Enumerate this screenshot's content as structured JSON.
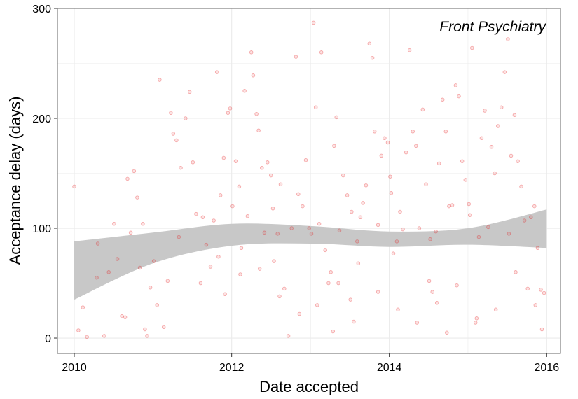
{
  "chart_data": {
    "type": "scatter",
    "annotation": "Front Psychiatry",
    "xlabel": "Date accepted",
    "ylabel": "Acceptance delay (days)",
    "xlim": [
      "2009-10-15",
      "2016-03-05"
    ],
    "ylim": [
      -14,
      300
    ],
    "x_ticks": [
      "2010",
      "2012",
      "2014",
      "2016"
    ],
    "x_tick_values": [
      "2010-01-01",
      "2012-01-01",
      "2014-01-01",
      "2016-01-01"
    ],
    "y_ticks": [
      "0",
      "100",
      "200",
      "300"
    ],
    "y_tick_values": [
      0,
      100,
      200,
      300
    ],
    "grid": true,
    "colors": {
      "points": "#e41a1c",
      "band": "#c8c8c8",
      "grid": "#ebebeb",
      "border": "#7f7f7f"
    },
    "points": [
      [
        "2010-01-01",
        138
      ],
      [
        "2010-01-20",
        7
      ],
      [
        "2010-02-10",
        28
      ],
      [
        "2010-03-01",
        1
      ],
      [
        "2010-04-15",
        55
      ],
      [
        "2010-04-20",
        86
      ],
      [
        "2010-05-20",
        2
      ],
      [
        "2010-06-10",
        60
      ],
      [
        "2010-07-05",
        104
      ],
      [
        "2010-07-20",
        72
      ],
      [
        "2010-08-10",
        20
      ],
      [
        "2010-08-25",
        19
      ],
      [
        "2010-09-05",
        145
      ],
      [
        "2010-09-20",
        96
      ],
      [
        "2010-10-05",
        152
      ],
      [
        "2010-10-20",
        128
      ],
      [
        "2010-11-01",
        64
      ],
      [
        "2010-11-15",
        104
      ],
      [
        "2010-11-25",
        8
      ],
      [
        "2010-12-05",
        2
      ],
      [
        "2010-12-20",
        46
      ],
      [
        "2011-01-05",
        70
      ],
      [
        "2011-01-20",
        30
      ],
      [
        "2011-02-01",
        235
      ],
      [
        "2011-02-20",
        10
      ],
      [
        "2011-03-10",
        52
      ],
      [
        "2011-03-25",
        205
      ],
      [
        "2011-04-05",
        186
      ],
      [
        "2011-04-20",
        180
      ],
      [
        "2011-05-10",
        155
      ],
      [
        "2011-06-01",
        200
      ],
      [
        "2011-06-20",
        224
      ],
      [
        "2011-07-05",
        160
      ],
      [
        "2011-07-20",
        113
      ],
      [
        "2011-08-10",
        50
      ],
      [
        "2011-08-20",
        110
      ],
      [
        "2011-09-05",
        85
      ],
      [
        "2011-09-25",
        65
      ],
      [
        "2011-10-10",
        107
      ],
      [
        "2011-10-25",
        242
      ],
      [
        "2011-11-10",
        130
      ],
      [
        "2011-11-25",
        164
      ],
      [
        "2011-12-01",
        40
      ],
      [
        "2011-12-15",
        205
      ],
      [
        "2011-12-25",
        209
      ],
      [
        "2012-01-05",
        120
      ],
      [
        "2012-01-20",
        161
      ],
      [
        "2012-02-05",
        138
      ],
      [
        "2012-02-15",
        82
      ],
      [
        "2012-03-01",
        225
      ],
      [
        "2012-03-15",
        111
      ],
      [
        "2012-04-01",
        260
      ],
      [
        "2012-04-10",
        239
      ],
      [
        "2012-04-25",
        204
      ],
      [
        "2012-05-05",
        189
      ],
      [
        "2012-05-20",
        155
      ],
      [
        "2012-06-01",
        96
      ],
      [
        "2012-06-15",
        160
      ],
      [
        "2012-07-01",
        148
      ],
      [
        "2012-07-15",
        70
      ],
      [
        "2012-08-01",
        95
      ],
      [
        "2012-08-15",
        140
      ],
      [
        "2012-09-01",
        45
      ],
      [
        "2012-09-20",
        2
      ],
      [
        "2012-10-05",
        100
      ],
      [
        "2012-10-25",
        256
      ],
      [
        "2012-11-05",
        131
      ],
      [
        "2012-11-25",
        120
      ],
      [
        "2012-12-10",
        162
      ],
      [
        "2012-12-25",
        100
      ],
      [
        "2013-01-15",
        287
      ],
      [
        "2013-01-25",
        210
      ],
      [
        "2013-02-10",
        104
      ],
      [
        "2013-02-20",
        260
      ],
      [
        "2013-03-10",
        80
      ],
      [
        "2013-03-25",
        50
      ],
      [
        "2013-04-05",
        60
      ],
      [
        "2013-04-20",
        175
      ],
      [
        "2013-05-01",
        201
      ],
      [
        "2013-05-15",
        98
      ],
      [
        "2013-06-01",
        148
      ],
      [
        "2013-06-20",
        130
      ],
      [
        "2013-07-05",
        35
      ],
      [
        "2013-07-20",
        15
      ],
      [
        "2013-08-05",
        88
      ],
      [
        "2013-08-20",
        110
      ],
      [
        "2013-09-01",
        123
      ],
      [
        "2013-09-15",
        139
      ],
      [
        "2013-10-01",
        268
      ],
      [
        "2013-10-15",
        255
      ],
      [
        "2013-10-25",
        188
      ],
      [
        "2013-11-10",
        103
      ],
      [
        "2013-11-25",
        166
      ],
      [
        "2013-12-10",
        182
      ],
      [
        "2013-12-25",
        178
      ],
      [
        "2014-01-05",
        147
      ],
      [
        "2014-01-20",
        77
      ],
      [
        "2014-02-05",
        88
      ],
      [
        "2014-02-20",
        115
      ],
      [
        "2014-03-05",
        99
      ],
      [
        "2014-03-20",
        169
      ],
      [
        "2014-04-05",
        262
      ],
      [
        "2014-04-20",
        188
      ],
      [
        "2014-05-05",
        175
      ],
      [
        "2014-05-20",
        100
      ],
      [
        "2014-06-05",
        208
      ],
      [
        "2014-06-20",
        140
      ],
      [
        "2014-07-05",
        52
      ],
      [
        "2014-07-20",
        42
      ],
      [
        "2014-08-05",
        97
      ],
      [
        "2014-08-20",
        159
      ],
      [
        "2014-09-05",
        217
      ],
      [
        "2014-09-20",
        188
      ],
      [
        "2014-10-05",
        120
      ],
      [
        "2014-10-20",
        121
      ],
      [
        "2014-11-05",
        230
      ],
      [
        "2014-11-20",
        220
      ],
      [
        "2014-12-05",
        161
      ],
      [
        "2014-12-20",
        144
      ],
      [
        "2015-01-05",
        122
      ],
      [
        "2015-01-20",
        264
      ],
      [
        "2015-02-05",
        14
      ],
      [
        "2015-02-20",
        92
      ],
      [
        "2015-03-05",
        182
      ],
      [
        "2015-03-20",
        207
      ],
      [
        "2015-04-05",
        101
      ],
      [
        "2015-04-20",
        174
      ],
      [
        "2015-05-05",
        150
      ],
      [
        "2015-05-20",
        193
      ],
      [
        "2015-06-05",
        210
      ],
      [
        "2015-06-20",
        242
      ],
      [
        "2015-07-05",
        272
      ],
      [
        "2015-07-20",
        166
      ],
      [
        "2015-08-05",
        203
      ],
      [
        "2015-08-20",
        161
      ],
      [
        "2015-09-05",
        138
      ],
      [
        "2015-09-20",
        107
      ],
      [
        "2015-10-05",
        45
      ],
      [
        "2015-10-20",
        110
      ],
      [
        "2015-11-05",
        120
      ],
      [
        "2015-11-20",
        82
      ],
      [
        "2015-12-05",
        44
      ],
      [
        "2015-12-20",
        41
      ],
      [
        "2012-02-10",
        58
      ],
      [
        "2012-05-10",
        63
      ],
      [
        "2012-08-10",
        38
      ],
      [
        "2012-11-10",
        22
      ],
      [
        "2013-02-01",
        30
      ],
      [
        "2013-05-10",
        50
      ],
      [
        "2013-08-10",
        68
      ],
      [
        "2013-11-10",
        42
      ],
      [
        "2014-02-10",
        26
      ],
      [
        "2014-05-10",
        14
      ],
      [
        "2014-08-10",
        32
      ],
      [
        "2014-11-10",
        48
      ],
      [
        "2015-02-10",
        18
      ],
      [
        "2015-05-10",
        26
      ],
      [
        "2015-08-10",
        60
      ],
      [
        "2015-11-10",
        30
      ],
      [
        "2011-05-01",
        92
      ],
      [
        "2011-11-01",
        74
      ],
      [
        "2012-07-10",
        118
      ],
      [
        "2013-01-05",
        95
      ],
      [
        "2013-07-10",
        115
      ],
      [
        "2014-01-10",
        132
      ],
      [
        "2014-07-10",
        90
      ],
      [
        "2015-01-10",
        112
      ],
      [
        "2015-07-10",
        95
      ],
      [
        "2013-04-15",
        6
      ],
      [
        "2014-09-25",
        5
      ],
      [
        "2015-12-10",
        8
      ]
    ],
    "smooth": {
      "x": [
        "2010-01-01",
        "2011-01-01",
        "2012-01-01",
        "2013-01-01",
        "2014-01-01",
        "2015-01-01",
        "2016-01-01"
      ],
      "lower": [
        35,
        68,
        84,
        86,
        83,
        85,
        82
      ],
      "upper": [
        88,
        96,
        104,
        102,
        97,
        100,
        117
      ]
    }
  }
}
